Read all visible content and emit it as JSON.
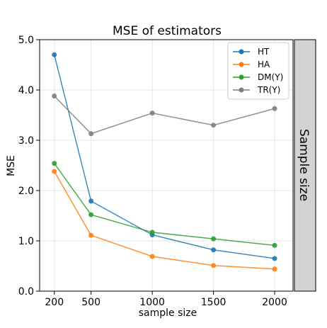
{
  "chart_data": {
    "type": "line",
    "title": "MSE of estimators",
    "xlabel": "sample size",
    "ylabel": "MSE",
    "facet_label": "Sample size",
    "x": [
      200,
      500,
      1000,
      1500,
      2000
    ],
    "x_tick_labels": [
      "200",
      "500",
      "1000",
      "1500",
      "2000"
    ],
    "y_ticks": [
      0.0,
      1.0,
      2.0,
      3.0,
      4.0,
      5.0
    ],
    "y_tick_labels": [
      "0.0",
      "1.0",
      "2.0",
      "3.0",
      "4.0",
      "5.0"
    ],
    "xlim": [
      80,
      2150
    ],
    "ylim": [
      0,
      5
    ],
    "grid": true,
    "legend_position": "top-right",
    "series": [
      {
        "name": "HT",
        "color": "#1f77b4",
        "values": [
          4.7,
          1.79,
          1.12,
          0.82,
          0.65
        ]
      },
      {
        "name": "HA",
        "color": "#ff7f0e",
        "values": [
          2.38,
          1.11,
          0.69,
          0.51,
          0.44
        ]
      },
      {
        "name": "DM(Y)",
        "color": "#2ca02c",
        "values": [
          2.54,
          1.52,
          1.17,
          1.04,
          0.91
        ]
      },
      {
        "name": "TR(Y)",
        "color": "#7f7f7f",
        "values": [
          3.88,
          3.13,
          3.54,
          3.3,
          3.63
        ]
      }
    ]
  }
}
